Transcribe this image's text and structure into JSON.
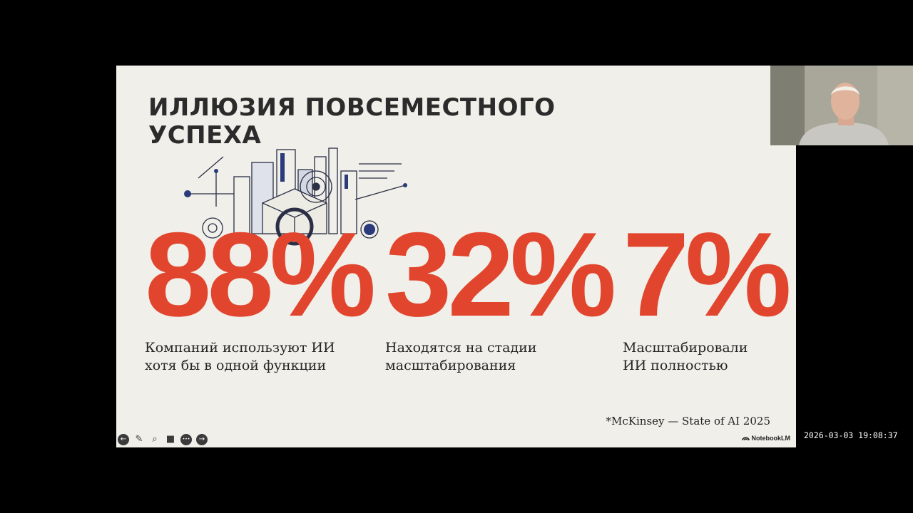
{
  "slide": {
    "title_lines": [
      "ИЛЛЮЗИЯ ПОВСЕМЕСТНОГО",
      "УСПЕХА"
    ],
    "stats": [
      {
        "value": "88%",
        "desc_lines": [
          "Компаний используют ИИ",
          "хотя бы в одной функции"
        ]
      },
      {
        "value": "32%",
        "desc_lines": [
          "Находятся на стадии",
          "масштабирования"
        ]
      },
      {
        "value": "7%",
        "desc_lines": [
          "Масштабировали",
          "ИИ полностью"
        ]
      }
    ],
    "source": "*McKinsey — State of AI 2025",
    "brand": "NotebookLM",
    "accent_color": "#e2452d"
  },
  "controls": [
    {
      "name": "previous",
      "glyph": "←",
      "icon": "arrow-left-icon"
    },
    {
      "name": "pen",
      "glyph": "✎",
      "icon": "pen-icon"
    },
    {
      "name": "zoom",
      "glyph": "⌕",
      "icon": "magnifier-icon"
    },
    {
      "name": "camera",
      "glyph": "■",
      "icon": "video-camera-icon"
    },
    {
      "name": "more",
      "glyph": "•••",
      "icon": "more-icon"
    },
    {
      "name": "next",
      "glyph": "→",
      "icon": "arrow-right-icon"
    }
  ],
  "timestamp": "2026-03-03 19:08:37"
}
